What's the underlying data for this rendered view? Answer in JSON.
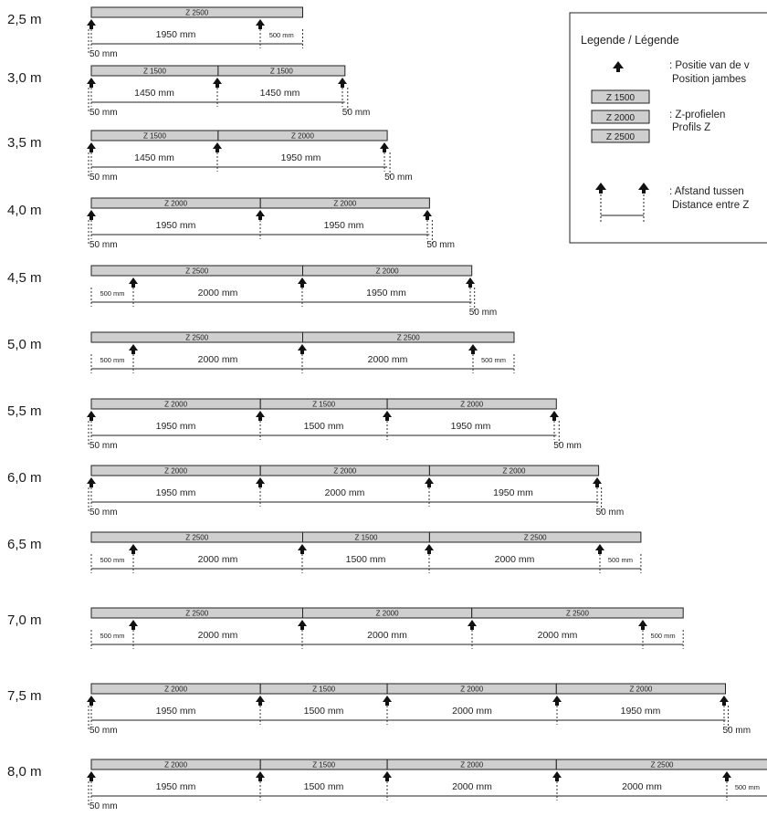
{
  "legend": {
    "title": "Legende / Légende",
    "post_position": {
      "line1": ": Positie van de v",
      "line2": "Position jambes"
    },
    "profiles": {
      "boxes": [
        "Z 1500",
        "Z 2000",
        "Z 2500"
      ],
      "line1": ": Z-profielen",
      "line2": "Profils Z"
    },
    "distance": {
      "line1": ": Afstand tussen",
      "line2": "Distance entre Z"
    }
  },
  "rows": [
    {
      "label": "2,5 m",
      "bars": [
        "Z 2500"
      ],
      "posts": [
        100,
        285
      ],
      "dims": [
        "1950 mm",
        "500 mm"
      ],
      "fifty_left": "50 mm",
      "fifty_right": ""
    },
    {
      "label": "3,0 m",
      "bars": [
        "Z 1500",
        "Z 1500"
      ],
      "posts": [
        100,
        238,
        375
      ],
      "dims": [
        "1450 mm",
        "1450 mm"
      ],
      "fifty_left": "50 mm",
      "fifty_right": "50 mm"
    },
    {
      "label": "3,5 m",
      "bars": [
        "Z 1500",
        "Z 2000"
      ],
      "posts": [
        100,
        238,
        421
      ],
      "dims": [
        "1450 mm",
        "1950 mm"
      ],
      "fifty_left": "50 mm",
      "fifty_right": "50 mm"
    },
    {
      "label": "4,0 m",
      "bars": [
        "Z 2000",
        "Z 2000"
      ],
      "posts": [
        100,
        285,
        468
      ],
      "dims": [
        "1950 mm",
        "1950 mm"
      ],
      "fifty_left": "50 mm",
      "fifty_right": "50 mm"
    },
    {
      "label": "4,5 m",
      "bars": [
        "Z 2500",
        "Z 2000"
      ],
      "posts": [
        146,
        331,
        515
      ],
      "dims": [
        "500 mm",
        "2000 mm",
        "1950 mm"
      ],
      "fifty_left": "",
      "fifty_right": "50 mm"
    },
    {
      "label": "5,0 m",
      "bars": [
        "Z 2500",
        "Z 2500"
      ],
      "posts": [
        146,
        331,
        518
      ],
      "dims": [
        "500 mm",
        "2000 mm",
        "2000 mm",
        "500 mm"
      ],
      "fifty_left": "",
      "fifty_right": ""
    },
    {
      "label": "5,5 m",
      "bars": [
        "Z 2000",
        "Z 1500",
        "Z 2000"
      ],
      "posts": [
        100,
        285,
        424,
        607
      ],
      "dims": [
        "1950 mm",
        "1500 mm",
        "1950 mm"
      ],
      "fifty_left": "50 mm",
      "fifty_right": "50 mm"
    },
    {
      "label": "6,0 m",
      "bars": [
        "Z 2000",
        "Z 2000",
        "Z 2000"
      ],
      "posts": [
        100,
        285,
        470,
        654
      ],
      "dims": [
        "1950 mm",
        "2000 mm",
        "1950 mm"
      ],
      "fifty_left": "50 mm",
      "fifty_right": "50 mm"
    },
    {
      "label": "6,5 m",
      "bars": [
        "Z 2500",
        "Z 1500",
        "Z 2500"
      ],
      "posts": [
        146,
        331,
        470,
        657
      ],
      "dims": [
        "500 mm",
        "2000 mm",
        "1500 mm",
        "2000 mm",
        "500 mm"
      ],
      "fifty_left": "",
      "fifty_right": ""
    },
    {
      "label": "7,0 m",
      "bars": [
        "Z 2500",
        "Z 2000",
        "Z 2500"
      ],
      "posts": [
        146,
        331,
        517,
        704
      ],
      "dims": [
        "500 mm",
        "2000 mm",
        "2000 mm",
        "2000 mm",
        "500 mm"
      ],
      "fifty_left": "",
      "fifty_right": ""
    },
    {
      "label": "7,5 m",
      "bars": [
        "Z 2000",
        "Z 1500",
        "Z 2000",
        "Z 2000"
      ],
      "posts": [
        100,
        285,
        424,
        610,
        793
      ],
      "dims": [
        "1950 mm",
        "1500 mm",
        "2000 mm",
        "1950 mm"
      ],
      "fifty_left": "50 mm",
      "fifty_right": "50 mm"
    },
    {
      "label": "8,0 m",
      "bars": [
        "Z 2000",
        "Z 1500",
        "Z 2000",
        "Z 2500"
      ],
      "posts": [
        100,
        285,
        424,
        610,
        796
      ],
      "dims": [
        "1950 mm",
        "1500 mm",
        "2000 mm",
        "2000 mm",
        "500 mm"
      ],
      "fifty_left": "50 mm",
      "fifty_right": ""
    }
  ]
}
